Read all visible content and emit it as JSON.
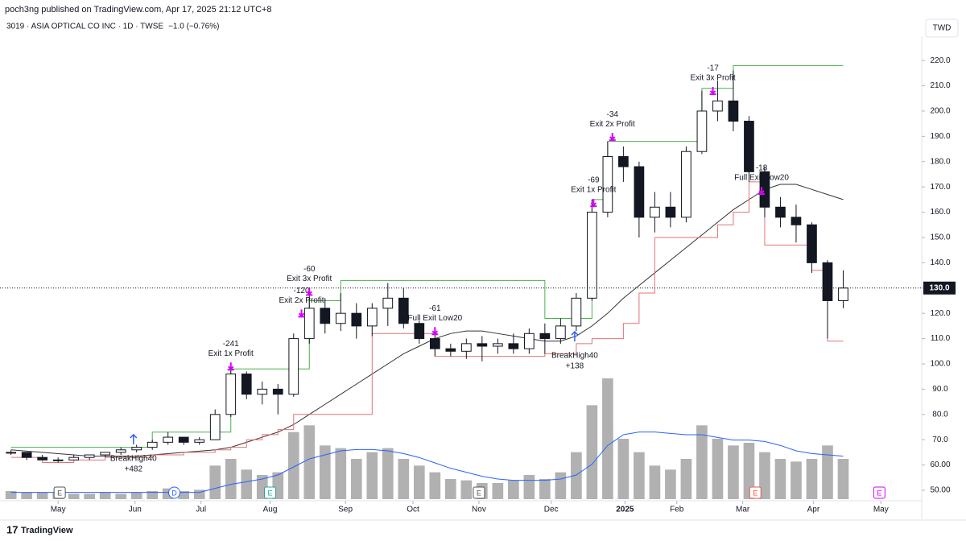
{
  "chart_data": {
    "type": "candlestick",
    "header": "poch3ng published on TradingView.com, Apr 17, 2025 21:12 UTC+8",
    "symbol": "3019 · ASIA OPTICAL CO INC · 1D · TWSE",
    "change": "−1.0 (−0.76%)",
    "currency": "TWD",
    "brand": "TradingView",
    "last_price_label": "130.0",
    "x": [
      -3,
      -2,
      -1,
      0,
      1,
      2,
      3,
      4,
      5,
      6,
      7,
      8,
      9,
      10,
      11,
      12,
      13,
      14,
      15,
      16,
      17,
      18,
      19,
      20,
      21,
      22,
      23,
      24,
      25,
      26,
      27,
      28,
      29,
      30,
      31,
      32,
      33,
      34,
      35,
      36,
      37,
      38,
      39,
      40,
      41,
      42,
      43,
      44,
      45,
      46,
      47,
      48,
      49,
      50
    ],
    "open": [
      65,
      65,
      63,
      62,
      62,
      63,
      64,
      65,
      66,
      67,
      69,
      71,
      69,
      70,
      80,
      96,
      88,
      90,
      88,
      110,
      122,
      116,
      120,
      115,
      122,
      126,
      116,
      110,
      106,
      105,
      108,
      107,
      108,
      106,
      112,
      110,
      115,
      126,
      160,
      182,
      178,
      158,
      162,
      158,
      184,
      200,
      204,
      196,
      176,
      162,
      158,
      155,
      140,
      125
    ],
    "high": [
      66,
      65,
      64,
      63,
      64,
      64,
      65,
      67,
      68,
      70,
      73,
      71,
      71,
      82,
      100,
      97,
      93,
      92,
      112,
      127,
      126,
      128,
      124,
      124,
      132,
      130,
      117,
      112,
      108,
      110,
      111,
      110,
      112,
      114,
      116,
      118,
      128,
      165,
      188,
      186,
      180,
      168,
      168,
      186,
      208,
      212,
      216,
      198,
      178,
      166,
      163,
      156,
      141,
      137
    ],
    "low": [
      64,
      62,
      62,
      61,
      62,
      62,
      63,
      64,
      65,
      66,
      68,
      68,
      68,
      70,
      79,
      86,
      84,
      80,
      87,
      108,
      112,
      113,
      110,
      111,
      115,
      114,
      108,
      103,
      103,
      102,
      101,
      104,
      104,
      104,
      104,
      108,
      113,
      125,
      158,
      172,
      150,
      152,
      154,
      156,
      183,
      196,
      192,
      172,
      158,
      154,
      148,
      136,
      110,
      122
    ],
    "close": [
      65,
      63,
      62,
      62,
      63,
      64,
      65,
      66,
      67,
      69,
      71,
      69,
      70,
      80,
      96,
      88,
      90,
      88,
      110,
      122,
      116,
      120,
      115,
      122,
      126,
      116,
      110,
      106,
      105,
      108,
      107,
      108,
      106,
      112,
      110,
      115,
      126,
      160,
      182,
      178,
      158,
      162,
      158,
      184,
      200,
      204,
      196,
      176,
      162,
      158,
      155,
      140,
      125,
      130
    ],
    "series": [
      {
        "name": "SMA",
        "color": "#333333",
        "values": [
          66,
          65.5,
          65,
          64.5,
          64,
          63.5,
          63.5,
          63.5,
          63.5,
          64,
          64.5,
          65,
          65.5,
          66,
          67,
          69,
          71,
          73,
          76,
          80,
          84,
          88,
          92,
          96,
          100,
          104,
          107,
          110,
          112,
          113,
          113,
          112,
          111,
          110,
          109,
          109,
          111,
          115,
          120,
          126,
          131,
          136,
          141,
          146,
          151,
          156,
          161,
          165,
          169,
          171,
          171,
          169,
          167,
          165
        ]
      },
      {
        "name": "High40",
        "color": "#4caf50",
        "step": true,
        "values": [
          67,
          67,
          67,
          67,
          67,
          67,
          67,
          67,
          67,
          73,
          73,
          73,
          73,
          73,
          98,
          98,
          98,
          98,
          98,
          125,
          125,
          133,
          133,
          133,
          133,
          133,
          133,
          133,
          133,
          133,
          133,
          133,
          133,
          133,
          118,
          118,
          118,
          165,
          188,
          188,
          188,
          188,
          188,
          188,
          209,
          209,
          218,
          218,
          218,
          218,
          218,
          218,
          218,
          218
        ]
      },
      {
        "name": "Low20",
        "color": "#e57373",
        "step": true,
        "values": [
          63,
          63,
          61,
          61,
          62,
          62,
          63,
          63,
          63,
          64,
          64,
          65,
          65,
          66,
          67,
          70,
          72,
          74,
          80,
          80,
          80,
          80,
          80,
          112,
          112,
          112,
          112,
          103,
          103,
          103,
          103,
          103,
          103,
          103,
          104,
          104,
          108,
          110,
          110,
          116,
          128,
          150,
          150,
          150,
          150,
          155,
          160,
          172,
          147,
          147,
          147,
          137,
          109,
          109
        ]
      }
    ],
    "volume": [
      6,
      5,
      5,
      5,
      4,
      4,
      5,
      4,
      5,
      6,
      8,
      6,
      7,
      25,
      30,
      22,
      18,
      20,
      50,
      55,
      40,
      38,
      30,
      35,
      38,
      30,
      25,
      20,
      15,
      14,
      12,
      12,
      14,
      18,
      15,
      20,
      35,
      70,
      90,
      45,
      35,
      25,
      22,
      30,
      55,
      45,
      40,
      42,
      35,
      30,
      28,
      30,
      40,
      30
    ],
    "volume_ma": [
      5,
      5,
      5,
      5,
      5,
      5,
      5,
      5,
      5,
      5,
      5,
      5,
      5,
      8,
      11,
      13,
      15,
      18,
      24,
      30,
      33,
      36,
      37,
      37,
      36,
      34,
      31,
      27,
      23,
      20,
      17,
      15,
      14,
      14,
      14,
      15,
      18,
      26,
      40,
      48,
      50,
      50,
      49,
      48,
      48,
      46,
      44,
      44,
      43,
      40,
      36,
      34,
      33,
      32
    ],
    "xlim": [
      -3.7,
      55
    ],
    "ylim": [
      46.5,
      229.6
    ],
    "xticks": [
      {
        "value": 0,
        "label": "May"
      },
      {
        "value": 4.9,
        "label": "Jun"
      },
      {
        "value": 9.1,
        "label": "Jul"
      },
      {
        "value": 13.5,
        "label": "Aug"
      },
      {
        "value": 18.3,
        "label": "Sep"
      },
      {
        "value": 22.6,
        "label": "Oct"
      },
      {
        "value": 26.8,
        "label": "Nov"
      },
      {
        "value": 31.4,
        "label": "Dec"
      },
      {
        "value": 36.1,
        "label": "2025"
      },
      {
        "value": 39.4,
        "label": "Feb"
      },
      {
        "value": 43.6,
        "label": "Mar"
      },
      {
        "value": 48.1,
        "label": "Apr"
      },
      {
        "value": 52.4,
        "label": "May"
      }
    ],
    "yticks": [
      {
        "value": 50,
        "label": "50.00"
      },
      {
        "value": 60,
        "label": "60.00"
      },
      {
        "value": 70,
        "label": "70.0"
      },
      {
        "value": 80,
        "label": "80.0"
      },
      {
        "value": 90,
        "label": "90.0"
      },
      {
        "value": 100,
        "label": "100.0"
      },
      {
        "value": 110,
        "label": "110.0"
      },
      {
        "value": 120,
        "label": "120.0"
      },
      {
        "value": 130,
        "label": "130.0"
      },
      {
        "value": 140,
        "label": "140.0"
      },
      {
        "value": 150,
        "label": "150.0"
      },
      {
        "value": 160,
        "label": "160.0"
      },
      {
        "value": 170,
        "label": "170.0"
      },
      {
        "value": 180,
        "label": "180.0"
      },
      {
        "value": 190,
        "label": "190.0"
      },
      {
        "value": 200,
        "label": "200.0"
      },
      {
        "value": 210,
        "label": "210.0"
      },
      {
        "value": 220,
        "label": "220.0"
      }
    ],
    "annotations": [
      {
        "x": 4.8,
        "price": 72,
        "text": "BreakHigh40",
        "pnl": "+482",
        "side": "below",
        "color": "#2962ff"
      },
      {
        "x": 11,
        "price": 98,
        "text": "Exit 1x Profit",
        "pnl": "-241",
        "side": "above",
        "color": "#d500f9"
      },
      {
        "x": 15.5,
        "price": 119,
        "text": "Exit 2x Profit",
        "pnl": "-120",
        "side": "above",
        "color": "#d500f9"
      },
      {
        "x": 16,
        "price": 127.6,
        "text": "Exit 3x Profit",
        "pnl": "-60",
        "side": "above",
        "color": "#d500f9"
      },
      {
        "x": 24,
        "price": 112,
        "text": "Full Exit Low20",
        "pnl": "-61",
        "side": "above",
        "color": "#d500f9"
      },
      {
        "x": 32.9,
        "price": 112.7,
        "text": "BreakHigh40",
        "pnl": "+138",
        "side": "below",
        "color": "#2962ff"
      },
      {
        "x": 34.1,
        "price": 162.7,
        "text": "Exit 1x Profit",
        "pnl": "-69",
        "side": "above",
        "color": "#d500f9"
      },
      {
        "x": 35.3,
        "price": 188.8,
        "text": "Exit 2x Profit",
        "pnl": "-34",
        "side": "above",
        "color": "#d500f9"
      },
      {
        "x": 41.7,
        "price": 207,
        "text": "Exit 3x Profit",
        "pnl": "-17",
        "side": "above",
        "color": "#d500f9"
      },
      {
        "x": 44.8,
        "price": 167.5,
        "text": "Full Exit Low20",
        "pnl": "-18",
        "side": "above",
        "color": "#d500f9"
      }
    ],
    "events": [
      {
        "x": 0.1,
        "letter": "E",
        "color": "#555555"
      },
      {
        "x": 7.4,
        "letter": "D",
        "color": "#2962ff"
      },
      {
        "x": 13.5,
        "letter": "E",
        "color": "#26a69a"
      },
      {
        "x": 26.8,
        "letter": "E",
        "color": "#555555"
      },
      {
        "x": 44.4,
        "letter": "E",
        "color": "#ef5350"
      },
      {
        "x": 52.3,
        "letter": "E",
        "color": "#d500f9"
      }
    ]
  }
}
